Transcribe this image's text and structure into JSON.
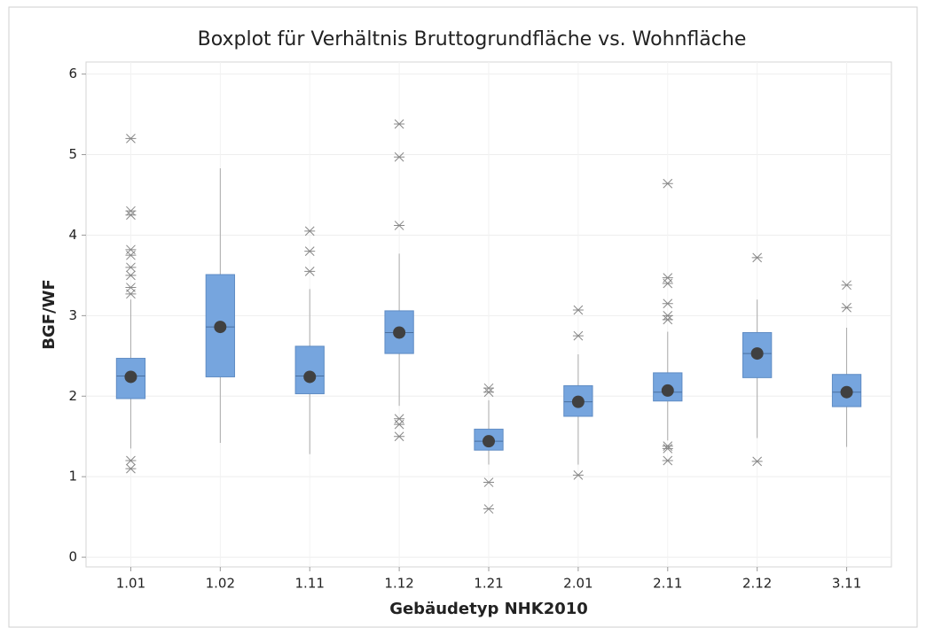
{
  "chart_data": {
    "type": "box",
    "title": "Boxplot für Verhältnis Bruttogrundfläche vs. Wohnfläche",
    "x_label": "Gebäudetyp  NHK2010",
    "y_label": "BGF/WF",
    "categories": [
      "1.01",
      "1.02",
      "1.11",
      "1.12",
      "1.21",
      "2.01",
      "2.11",
      "2.12",
      "3.11"
    ],
    "boxes": [
      {
        "whisker_low": 1.35,
        "q1": 1.97,
        "median": 2.25,
        "q3": 2.47,
        "whisker_high": 3.2,
        "mean": 2.24,
        "outliers": [
          1.1,
          1.2,
          3.27,
          3.35,
          3.5,
          3.6,
          3.75,
          3.82,
          4.25,
          4.3,
          5.2
        ]
      },
      {
        "whisker_low": 1.42,
        "q1": 2.24,
        "median": 2.86,
        "q3": 3.51,
        "whisker_high": 4.83,
        "mean": 2.86,
        "outliers": []
      },
      {
        "whisker_low": 1.28,
        "q1": 2.03,
        "median": 2.25,
        "q3": 2.62,
        "whisker_high": 3.33,
        "mean": 2.24,
        "outliers": [
          3.55,
          3.8,
          4.05
        ]
      },
      {
        "whisker_low": 1.88,
        "q1": 2.53,
        "median": 2.79,
        "q3": 3.06,
        "whisker_high": 3.77,
        "mean": 2.79,
        "outliers": [
          1.5,
          1.65,
          1.72,
          4.12,
          4.97,
          5.38
        ]
      },
      {
        "whisker_low": 1.15,
        "q1": 1.33,
        "median": 1.44,
        "q3": 1.59,
        "whisker_high": 1.95,
        "mean": 1.44,
        "outliers": [
          0.6,
          0.93,
          2.05,
          2.1
        ]
      },
      {
        "whisker_low": 1.15,
        "q1": 1.75,
        "median": 1.93,
        "q3": 2.13,
        "whisker_high": 2.52,
        "mean": 1.93,
        "outliers": [
          1.02,
          2.75,
          3.07
        ]
      },
      {
        "whisker_low": 1.45,
        "q1": 1.94,
        "median": 2.05,
        "q3": 2.29,
        "whisker_high": 2.8,
        "mean": 2.07,
        "outliers": [
          1.2,
          1.35,
          1.38,
          2.95,
          3.0,
          3.15,
          3.4,
          3.47,
          4.64
        ]
      },
      {
        "whisker_low": 1.48,
        "q1": 2.23,
        "median": 2.53,
        "q3": 2.79,
        "whisker_high": 3.2,
        "mean": 2.53,
        "outliers": [
          1.19,
          3.72
        ]
      },
      {
        "whisker_low": 1.37,
        "q1": 1.87,
        "median": 2.05,
        "q3": 2.27,
        "whisker_high": 2.85,
        "mean": 2.05,
        "outliers": [
          3.1,
          3.38
        ]
      }
    ],
    "color": "#76a5de",
    "mean_color": "#404040",
    "ylim": [
      -0.12,
      6.15
    ],
    "yticks": [
      0,
      1,
      2,
      3,
      4,
      5,
      6
    ],
    "grid": true
  }
}
